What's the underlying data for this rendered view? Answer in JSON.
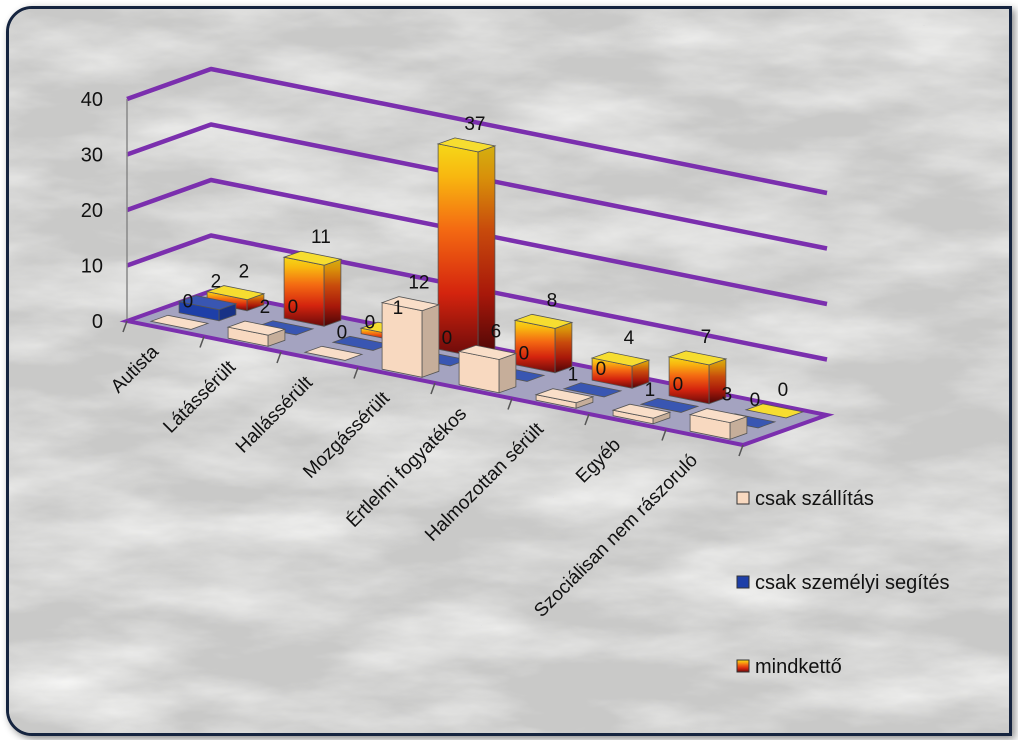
{
  "chart_data": {
    "type": "bar",
    "style": "3d-column",
    "categories": [
      "Autista",
      "Látássérült",
      "Hallássérült",
      "Mozgássérült",
      "Értlelmi fogyatékos",
      "Halmozottan sérült",
      "Egyéb",
      "Szociálisan nem rászoruló"
    ],
    "series": [
      {
        "name": "csak szállítás",
        "values": [
          0,
          2,
          0,
          12,
          6,
          1,
          1,
          3
        ],
        "color": "#f8d9c0"
      },
      {
        "name": "csak személyi segítés",
        "values": [
          2,
          0,
          0,
          0,
          0,
          0,
          0,
          0
        ],
        "color": "#1e3fa8"
      },
      {
        "name": "mindkettő",
        "values": [
          2,
          11,
          1,
          37,
          8,
          4,
          7,
          0
        ],
        "color": "#e86018"
      }
    ],
    "y_ticks": [
      "0",
      "10",
      "20",
      "30",
      "40"
    ],
    "ylim": [
      0,
      40
    ],
    "grid": true,
    "gridline_color": "#7b2fae",
    "legend_position": "right"
  }
}
